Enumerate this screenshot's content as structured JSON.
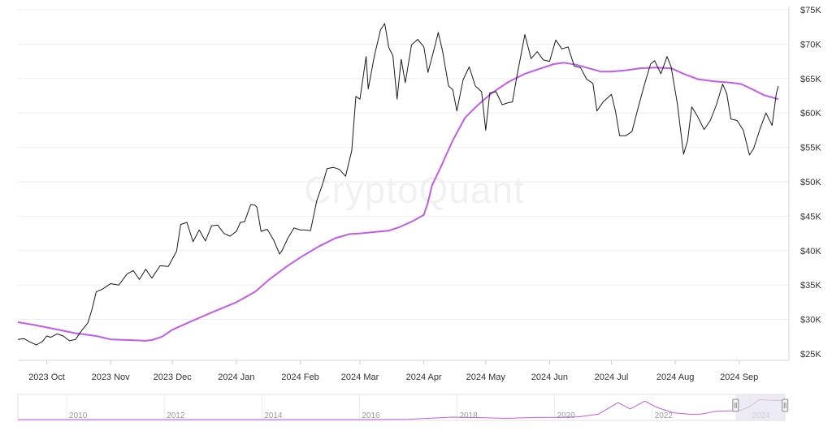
{
  "watermark": "CryptoQuant",
  "colors": {
    "price": "#1a1a1a",
    "indicator": "#c05ce6",
    "grid": "#eeeeee",
    "navigator_mask": "#e6e2ee",
    "navigator_line": "#c05ce6"
  },
  "chart_data": {
    "type": "line",
    "title": "",
    "xlabel": "",
    "ylabel": "",
    "y_axis_side": "right",
    "ylim": [
      25000,
      75000
    ],
    "yticks": [
      {
        "value": 25000,
        "label": "$25K"
      },
      {
        "value": 30000,
        "label": "$30K"
      },
      {
        "value": 35000,
        "label": "$35K"
      },
      {
        "value": 40000,
        "label": "$40K"
      },
      {
        "value": 45000,
        "label": "$45K"
      },
      {
        "value": 50000,
        "label": "$50K"
      },
      {
        "value": 55000,
        "label": "$55K"
      },
      {
        "value": 60000,
        "label": "$60K"
      },
      {
        "value": 65000,
        "label": "$65K"
      },
      {
        "value": 70000,
        "label": "$70K"
      },
      {
        "value": 75000,
        "label": "$75K"
      }
    ],
    "xlim": [
      "2023-09-17",
      "2024-09-22"
    ],
    "xticks": [
      {
        "date": "2023-10-01",
        "label": "2023 Oct"
      },
      {
        "date": "2023-11-01",
        "label": "2023 Nov"
      },
      {
        "date": "2023-12-01",
        "label": "2023 Dec"
      },
      {
        "date": "2024-01-01",
        "label": "2024 Jan"
      },
      {
        "date": "2024-02-01",
        "label": "2024 Feb"
      },
      {
        "date": "2024-03-01",
        "label": "2024 Mar"
      },
      {
        "date": "2024-04-01",
        "label": "2024 Apr"
      },
      {
        "date": "2024-05-01",
        "label": "2024 May"
      },
      {
        "date": "2024-06-01",
        "label": "2024 Jun"
      },
      {
        "date": "2024-07-01",
        "label": "2024 Jul"
      },
      {
        "date": "2024-08-01",
        "label": "2024 Aug"
      },
      {
        "date": "2024-09-01",
        "label": "2024 Sep"
      }
    ],
    "grid": true,
    "legend": "none",
    "series": [
      {
        "color": "#1a1a1a",
        "points": [
          [
            "2023-09-17",
            27100
          ],
          [
            "2023-09-20",
            27200
          ],
          [
            "2023-09-23",
            26700
          ],
          [
            "2023-09-26",
            26300
          ],
          [
            "2023-09-29",
            26800
          ],
          [
            "2023-10-01",
            27600
          ],
          [
            "2023-10-03",
            27400
          ],
          [
            "2023-10-06",
            27900
          ],
          [
            "2023-10-09",
            27600
          ],
          [
            "2023-10-12",
            26900
          ],
          [
            "2023-10-15",
            27100
          ],
          [
            "2023-10-18",
            28400
          ],
          [
            "2023-10-21",
            29500
          ],
          [
            "2023-10-23",
            31500
          ],
          [
            "2023-10-25",
            34000
          ],
          [
            "2023-10-28",
            34400
          ],
          [
            "2023-11-01",
            35200
          ],
          [
            "2023-11-05",
            35000
          ],
          [
            "2023-11-09",
            36600
          ],
          [
            "2023-11-12",
            37100
          ],
          [
            "2023-11-15",
            35800
          ],
          [
            "2023-11-18",
            37300
          ],
          [
            "2023-11-21",
            36000
          ],
          [
            "2023-11-25",
            37800
          ],
          [
            "2023-11-29",
            37700
          ],
          [
            "2023-12-01",
            38800
          ],
          [
            "2023-12-03",
            39900
          ],
          [
            "2023-12-05",
            43800
          ],
          [
            "2023-12-08",
            44100
          ],
          [
            "2023-12-11",
            41300
          ],
          [
            "2023-12-14",
            43000
          ],
          [
            "2023-12-17",
            41400
          ],
          [
            "2023-12-20",
            43600
          ],
          [
            "2023-12-23",
            43700
          ],
          [
            "2023-12-26",
            42500
          ],
          [
            "2023-12-29",
            42100
          ],
          [
            "2024-01-01",
            42800
          ],
          [
            "2024-01-03",
            44100
          ],
          [
            "2024-01-05",
            44200
          ],
          [
            "2024-01-08",
            46700
          ],
          [
            "2024-01-10",
            46600
          ],
          [
            "2024-01-11",
            46300
          ],
          [
            "2024-01-13",
            42800
          ],
          [
            "2024-01-16",
            43100
          ],
          [
            "2024-01-19",
            41600
          ],
          [
            "2024-01-22",
            39500
          ],
          [
            "2024-01-23",
            39900
          ],
          [
            "2024-01-26",
            41800
          ],
          [
            "2024-01-29",
            43300
          ],
          [
            "2024-02-01",
            43000
          ],
          [
            "2024-02-03",
            43000
          ],
          [
            "2024-02-06",
            42900
          ],
          [
            "2024-02-09",
            47200
          ],
          [
            "2024-02-12",
            49800
          ],
          [
            "2024-02-14",
            51900
          ],
          [
            "2024-02-17",
            52100
          ],
          [
            "2024-02-20",
            51800
          ],
          [
            "2024-02-23",
            50800
          ],
          [
            "2024-02-26",
            54500
          ],
          [
            "2024-02-28",
            62400
          ],
          [
            "2024-03-01",
            62000
          ],
          [
            "2024-03-04",
            68200
          ],
          [
            "2024-03-05",
            63500
          ],
          [
            "2024-03-08",
            68300
          ],
          [
            "2024-03-11",
            72100
          ],
          [
            "2024-03-13",
            73000
          ],
          [
            "2024-03-15",
            69500
          ],
          [
            "2024-03-17",
            68300
          ],
          [
            "2024-03-19",
            62000
          ],
          [
            "2024-03-21",
            67800
          ],
          [
            "2024-03-23",
            64400
          ],
          [
            "2024-03-26",
            69900
          ],
          [
            "2024-03-29",
            70700
          ],
          [
            "2024-04-01",
            69600
          ],
          [
            "2024-04-03",
            65900
          ],
          [
            "2024-04-06",
            69300
          ],
          [
            "2024-04-08",
            71700
          ],
          [
            "2024-04-10",
            69100
          ],
          [
            "2024-04-13",
            63900
          ],
          [
            "2024-04-15",
            63400
          ],
          [
            "2024-04-17",
            60300
          ],
          [
            "2024-04-20",
            64800
          ],
          [
            "2024-04-23",
            66700
          ],
          [
            "2024-04-26",
            63900
          ],
          [
            "2024-04-29",
            63100
          ],
          [
            "2024-05-01",
            57500
          ],
          [
            "2024-05-03",
            62900
          ],
          [
            "2024-05-06",
            63100
          ],
          [
            "2024-05-09",
            61200
          ],
          [
            "2024-05-12",
            61500
          ],
          [
            "2024-05-14",
            61600
          ],
          [
            "2024-05-16",
            65100
          ],
          [
            "2024-05-20",
            71400
          ],
          [
            "2024-05-23",
            67900
          ],
          [
            "2024-05-26",
            68900
          ],
          [
            "2024-05-29",
            67700
          ],
          [
            "2024-06-01",
            67500
          ],
          [
            "2024-06-04",
            70600
          ],
          [
            "2024-06-07",
            69300
          ],
          [
            "2024-06-10",
            69600
          ],
          [
            "2024-06-13",
            66800
          ],
          [
            "2024-06-16",
            66600
          ],
          [
            "2024-06-19",
            64900
          ],
          [
            "2024-06-22",
            64300
          ],
          [
            "2024-06-24",
            60300
          ],
          [
            "2024-06-27",
            61600
          ],
          [
            "2024-07-01",
            62700
          ],
          [
            "2024-07-03",
            60200
          ],
          [
            "2024-07-05",
            56700
          ],
          [
            "2024-07-08",
            56700
          ],
          [
            "2024-07-11",
            57300
          ],
          [
            "2024-07-14",
            60800
          ],
          [
            "2024-07-17",
            64100
          ],
          [
            "2024-07-20",
            67100
          ],
          [
            "2024-07-22",
            67600
          ],
          [
            "2024-07-25",
            65700
          ],
          [
            "2024-07-28",
            68200
          ],
          [
            "2024-07-30",
            66700
          ],
          [
            "2024-08-02",
            61400
          ],
          [
            "2024-08-05",
            54000
          ],
          [
            "2024-08-07",
            56000
          ],
          [
            "2024-08-09",
            60900
          ],
          [
            "2024-08-12",
            59400
          ],
          [
            "2024-08-15",
            57600
          ],
          [
            "2024-08-18",
            58900
          ],
          [
            "2024-08-21",
            61200
          ],
          [
            "2024-08-24",
            64200
          ],
          [
            "2024-08-26",
            62800
          ],
          [
            "2024-08-28",
            59100
          ],
          [
            "2024-08-31",
            58900
          ],
          [
            "2024-09-03",
            57500
          ],
          [
            "2024-09-06",
            53900
          ],
          [
            "2024-09-08",
            54800
          ],
          [
            "2024-09-11",
            57600
          ],
          [
            "2024-09-14",
            60000
          ],
          [
            "2024-09-17",
            58200
          ],
          [
            "2024-09-19",
            62800
          ],
          [
            "2024-09-20",
            63900
          ]
        ]
      },
      {
        "color": "#c05ce6",
        "points": [
          [
            "2023-09-17",
            29600
          ],
          [
            "2023-09-25",
            29200
          ],
          [
            "2023-10-05",
            28600
          ],
          [
            "2023-10-15",
            28000
          ],
          [
            "2023-10-25",
            27600
          ],
          [
            "2023-11-01",
            27100
          ],
          [
            "2023-11-10",
            27000
          ],
          [
            "2023-11-18",
            26900
          ],
          [
            "2023-11-21",
            27000
          ],
          [
            "2023-11-26",
            27500
          ],
          [
            "2023-12-01",
            28500
          ],
          [
            "2023-12-10",
            29700
          ],
          [
            "2023-12-20",
            31000
          ],
          [
            "2024-01-01",
            32500
          ],
          [
            "2024-01-10",
            34000
          ],
          [
            "2024-01-17",
            35800
          ],
          [
            "2024-01-25",
            37600
          ],
          [
            "2024-02-01",
            39000
          ],
          [
            "2024-02-10",
            40600
          ],
          [
            "2024-02-18",
            41800
          ],
          [
            "2024-02-25",
            42400
          ],
          [
            "2024-03-01",
            42500
          ],
          [
            "2024-03-08",
            42700
          ],
          [
            "2024-03-15",
            42900
          ],
          [
            "2024-03-20",
            43400
          ],
          [
            "2024-03-26",
            44200
          ],
          [
            "2024-04-01",
            45200
          ],
          [
            "2024-04-03",
            47000
          ],
          [
            "2024-04-05",
            49500
          ],
          [
            "2024-04-09",
            52000
          ],
          [
            "2024-04-15",
            56000
          ],
          [
            "2024-04-21",
            59300
          ],
          [
            "2024-04-27",
            61100
          ],
          [
            "2024-05-04",
            62900
          ],
          [
            "2024-05-12",
            64500
          ],
          [
            "2024-05-20",
            65700
          ],
          [
            "2024-05-28",
            66500
          ],
          [
            "2024-06-03",
            67100
          ],
          [
            "2024-06-08",
            67300
          ],
          [
            "2024-06-14",
            67000
          ],
          [
            "2024-06-20",
            66500
          ],
          [
            "2024-06-26",
            66000
          ],
          [
            "2024-07-01",
            66000
          ],
          [
            "2024-07-08",
            66200
          ],
          [
            "2024-07-15",
            66500
          ],
          [
            "2024-07-22",
            66600
          ],
          [
            "2024-07-30",
            66500
          ],
          [
            "2024-08-05",
            65700
          ],
          [
            "2024-08-12",
            64900
          ],
          [
            "2024-08-20",
            64600
          ],
          [
            "2024-08-28",
            64400
          ],
          [
            "2024-09-02",
            64200
          ],
          [
            "2024-09-07",
            63500
          ],
          [
            "2024-09-13",
            62600
          ],
          [
            "2024-09-20",
            62000
          ]
        ]
      }
    ],
    "navigator": {
      "xlim": [
        2009.0,
        2024.72
      ],
      "labels": [
        "2010",
        "2012",
        "2014",
        "2016",
        "2018",
        "2020",
        "2022",
        "2024"
      ],
      "label_years": [
        2010,
        2012,
        2014,
        2016,
        2018,
        2020,
        2022,
        2024
      ],
      "selected_range": [
        "2023-09-17",
        "2024-09-22"
      ],
      "series": [
        [
          2009.0,
          0
        ],
        [
          2016.0,
          0
        ],
        [
          2017.0,
          1000
        ],
        [
          2017.9,
          8000
        ],
        [
          2018.5,
          6500
        ],
        [
          2019.0,
          4000
        ],
        [
          2019.6,
          7000
        ],
        [
          2020.0,
          7500
        ],
        [
          2020.5,
          9000
        ],
        [
          2020.9,
          18000
        ],
        [
          2021.3,
          56000
        ],
        [
          2021.55,
          35000
        ],
        [
          2021.85,
          61000
        ],
        [
          2022.1,
          40000
        ],
        [
          2022.45,
          22000
        ],
        [
          2022.8,
          17500
        ],
        [
          2023.0,
          18000
        ],
        [
          2023.3,
          27000
        ],
        [
          2023.8,
          30000
        ],
        [
          2024.0,
          43000
        ],
        [
          2024.2,
          66000
        ],
        [
          2024.4,
          64000
        ],
        [
          2024.72,
          63000
        ]
      ]
    }
  }
}
